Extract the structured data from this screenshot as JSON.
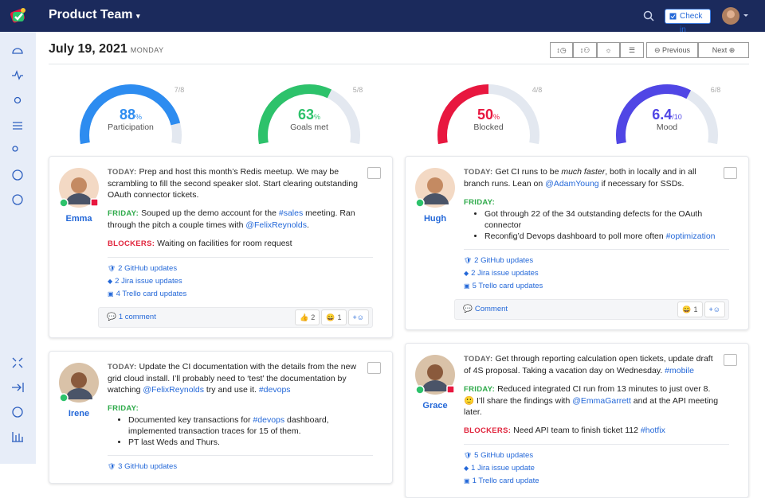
{
  "header": {
    "title": "Product Team",
    "check_in": "Check in"
  },
  "toolbar": {
    "date": "July 19, 2021",
    "weekday": "MONDAY",
    "previous": "Previous",
    "next": "Next"
  },
  "gauges": [
    {
      "value": 88,
      "unit": "%",
      "label": "Participation",
      "count": "7/8",
      "color": "#2d8cf0"
    },
    {
      "value": 63,
      "unit": "%",
      "label": "Goals met",
      "count": "5/8",
      "color": "#2dc26b"
    },
    {
      "value": 50,
      "unit": "%",
      "label": "Blocked",
      "count": "4/8",
      "color": "#e8173f"
    },
    {
      "value": 6.4,
      "unit": "/10",
      "max": 10,
      "label": "Mood",
      "count": "6/8",
      "color": "#5046e5"
    }
  ],
  "labels": {
    "today": "TODAY:",
    "friday": "FRIDAY:",
    "blockers": "BLOCKERS:"
  },
  "columns": [
    [
      {
        "name": "Emma",
        "blocked": true,
        "today": [
          "Prep and host this month’s Redis meetup. We may be scrambling to fill the second speaker slot. Start clearing outstanding OAuth connector tickets."
        ],
        "friday": [
          "Souped up the demo account for the ",
          {
            "link": "#sales"
          },
          " meeting. Ran through the pitch a couple times with ",
          {
            "link": "@FelixReynolds"
          },
          "."
        ],
        "blockers": [
          "Waiting on facilities for room request"
        ],
        "updates": [
          "2 GitHub updates",
          "2 Jira issue updates",
          "4 Trello card updates"
        ],
        "comment": "1 comment",
        "reactions": [
          {
            "emoji": "👍",
            "count": "2"
          },
          {
            "emoji": "😀",
            "count": "1"
          }
        ],
        "add": "+"
      },
      {
        "name": "Irene",
        "blocked": false,
        "today": [
          "Update the CI documentation with the details from the new grid cloud install. I’ll probably need to ‘test’ the documentation by watching ",
          {
            "link": "@FelixReynolds"
          },
          " try and use it. ",
          {
            "link": "#devops"
          }
        ],
        "friday_items": [
          [
            "Documented key transactions for ",
            {
              "link": "#devops"
            },
            " dashboard, implemented transaction traces for 15 of them."
          ],
          [
            "PT last Weds and Thurs."
          ]
        ],
        "updates": [
          "3 GitHub updates"
        ]
      }
    ],
    [
      {
        "name": "Hugh",
        "blocked": false,
        "today": [
          "Get CI runs to be ",
          {
            "em": "much faster"
          },
          ", both in locally and in all branch runs. Lean on ",
          {
            "link": "@AdamYoung"
          },
          " if necessary for SSDs."
        ],
        "friday_items": [
          [
            "Got through 22 of the 34 outstanding defects for the OAuth connector"
          ],
          [
            "Reconfig’d Devops dashboard to poll more often ",
            {
              "link": "#optimization"
            }
          ]
        ],
        "updates": [
          "2 GitHub updates",
          "2 Jira issue updates",
          "5 Trello card updates"
        ],
        "comment": "Comment",
        "reactions": [
          {
            "emoji": "😀",
            "count": "1"
          }
        ],
        "add": "+"
      },
      {
        "name": "Grace",
        "blocked": true,
        "today": [
          "Get through reporting calculation open tickets, update draft of 4S proposal. Taking a vacation day on Wednesday. ",
          {
            "link": "#mobile"
          }
        ],
        "friday": [
          "Reduced integrated CI run from 13 minutes to just over 8. 🙂 I’ll share the findings with ",
          {
            "link": "@EmmaGarrett"
          },
          " and at the API meeting later."
        ],
        "blockers": [
          "Need API team to finish ticket 112 ",
          {
            "link": "#hotfix"
          }
        ],
        "updates": [
          "5 GitHub updates",
          "1 Jira issue update",
          "1 Trello card update"
        ]
      }
    ]
  ]
}
